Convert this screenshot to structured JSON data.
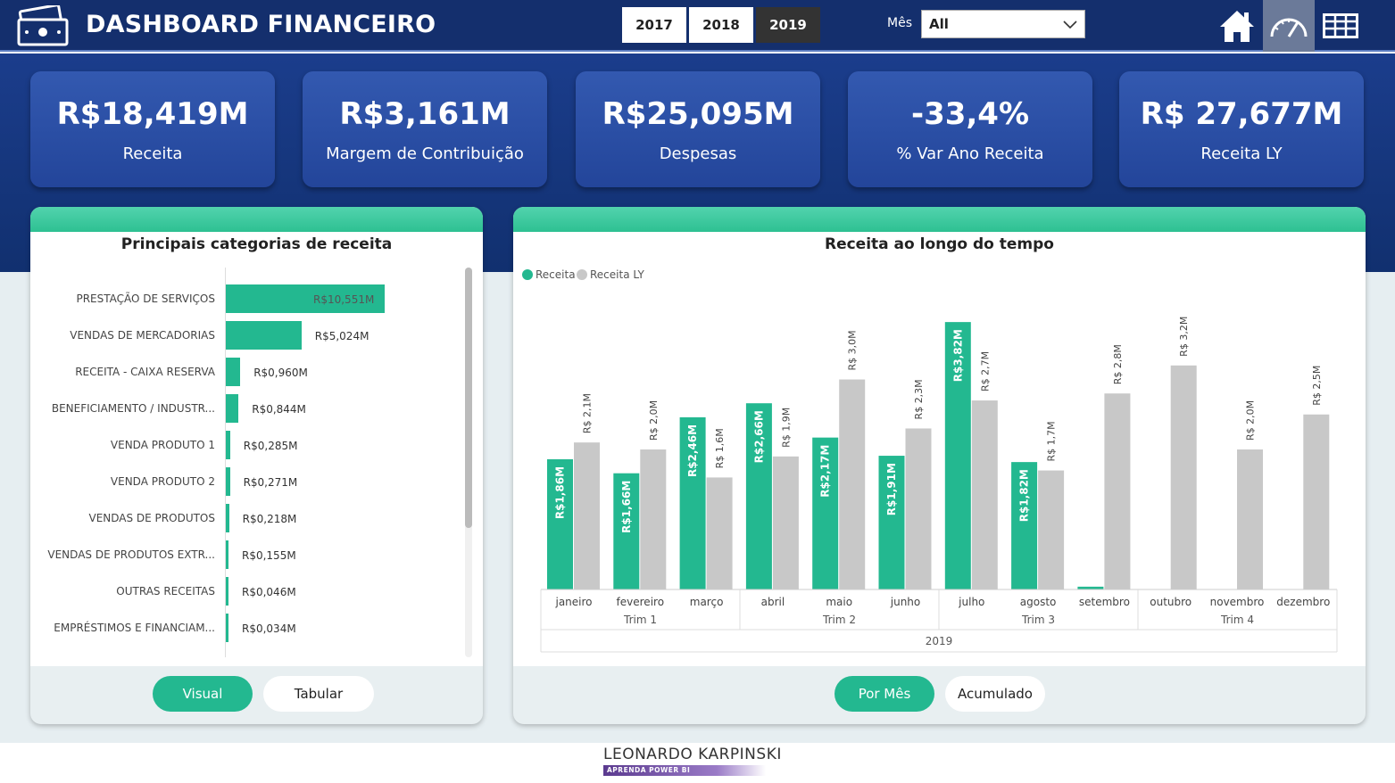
{
  "header": {
    "title": "DASHBOARD FINANCEIRO",
    "years": [
      {
        "label": "2017",
        "selected": false
      },
      {
        "label": "2018",
        "selected": false
      },
      {
        "label": "2019",
        "selected": true
      }
    ],
    "month_label": "Mês",
    "month_value": "All",
    "nav_icons": [
      "home-icon",
      "speedometer-icon",
      "table-icon"
    ]
  },
  "kpis": [
    {
      "value": "R$18,419M",
      "label": "Receita"
    },
    {
      "value": "R$3,161M",
      "label": "Margem de Contribuição"
    },
    {
      "value": "R$25,095M",
      "label": "Despesas"
    },
    {
      "value": "-33,4%",
      "label": "% Var Ano Receita"
    },
    {
      "value": "R$ 27,677M",
      "label": "Receita LY"
    }
  ],
  "categories_panel": {
    "title": "Principais categorias de receita",
    "buttons": {
      "visual": "Visual",
      "tabular": "Tabular"
    }
  },
  "time_panel": {
    "title": "Receita ao longo do tempo",
    "buttons": {
      "by_month": "Por Mês",
      "cumulative": "Acumulado"
    }
  },
  "chart_data": [
    {
      "type": "bar",
      "orientation": "horizontal",
      "title": "Principais categorias de receita",
      "categories": [
        "PRESTAÇÃO DE SERVIÇOS",
        "VENDAS DE MERCADORIAS",
        "RECEITA - CAIXA RESERVA",
        "BENEFICIAMENTO / INDUSTR...",
        "VENDA PRODUTO 1",
        "VENDA PRODUTO 2",
        "VENDAS DE PRODUTOS",
        "VENDAS DE PRODUTOS EXTR...",
        "OUTRAS RECEITAS",
        "EMPRÉSTIMOS E FINANCIAM..."
      ],
      "values": [
        10.551,
        5.024,
        0.96,
        0.844,
        0.285,
        0.271,
        0.218,
        0.155,
        0.046,
        0.034
      ],
      "labels": [
        "R$10,551M",
        "R$5,024M",
        "R$0,960M",
        "R$0,844M",
        "R$0,285M",
        "R$0,271M",
        "R$0,218M",
        "R$0,155M",
        "R$0,046M",
        "R$0,034M"
      ],
      "color": "#23b890"
    },
    {
      "type": "bar",
      "title": "Receita ao longo do tempo",
      "categories": [
        "janeiro",
        "fevereiro",
        "março",
        "abril",
        "maio",
        "junho",
        "julho",
        "agosto",
        "setembro",
        "outubro",
        "novembro",
        "dezembro"
      ],
      "quarters": [
        "Trim 1",
        "Trim 2",
        "Trim 3",
        "Trim 4"
      ],
      "year": "2019",
      "legend_position": "top-left",
      "series": [
        {
          "name": "Receita",
          "color": "#23b890",
          "values": [
            1.86,
            1.66,
            2.46,
            2.66,
            2.17,
            1.91,
            3.82,
            1.82,
            0.04,
            null,
            null,
            null
          ],
          "labels": [
            "R$1,86M",
            "R$1,66M",
            "R$2,46M",
            "R$2,66M",
            "R$2,17M",
            "R$1,91M",
            "R$3,82M",
            "R$1,82M",
            "",
            "",
            "",
            ""
          ]
        },
        {
          "name": "Receita LY",
          "color": "#c8c8c8",
          "values": [
            2.1,
            2.0,
            1.6,
            1.9,
            3.0,
            2.3,
            2.7,
            1.7,
            2.8,
            3.2,
            2.0,
            2.5
          ],
          "labels": [
            "R$ 2,1M",
            "R$ 2,0M",
            "R$ 1,6M",
            "R$ 1,9M",
            "R$ 3,0M",
            "R$ 2,3M",
            "R$ 2,7M",
            "R$ 1,7M",
            "R$ 2,8M",
            "R$ 3,2M",
            "R$ 2,0M",
            "R$ 2,5M"
          ]
        }
      ]
    }
  ],
  "footer": {
    "name": "LEONARDO KARPINSKI",
    "tagline": "APRENDA POWER BI"
  }
}
